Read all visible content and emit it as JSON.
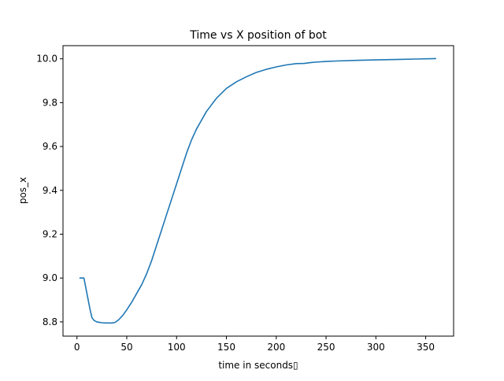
{
  "chart_data": {
    "type": "line",
    "title": "Time vs X position of bot",
    "xlabel": "time in seconds▯",
    "ylabel": "pos_x",
    "xlim": [
      -14,
      378
    ],
    "ylim": [
      8.735,
      10.06
    ],
    "xticks": [
      0,
      50,
      100,
      150,
      200,
      250,
      300,
      350
    ],
    "xtick_labels": [
      "0",
      "50",
      "100",
      "150",
      "200",
      "250",
      "300",
      "350"
    ],
    "yticks": [
      8.8,
      9.0,
      9.2,
      9.4,
      9.6,
      9.8,
      10.0
    ],
    "ytick_labels": [
      "8.8",
      "9.0",
      "9.2",
      "9.4",
      "9.6",
      "9.8",
      "10.0"
    ],
    "grid": false,
    "line_color": "#1f77b4",
    "series": [
      {
        "x": [
          3,
          5,
          7,
          10,
          13,
          15,
          17,
          20,
          25,
          30,
          35,
          38,
          42,
          46,
          50,
          55,
          60,
          65,
          70,
          75,
          80,
          85,
          90,
          95,
          100,
          105,
          110,
          115,
          120,
          130,
          140,
          150,
          160,
          170,
          180,
          190,
          200,
          210,
          220,
          228,
          235,
          240,
          250,
          260,
          280,
          300,
          320,
          340,
          360
        ],
        "y": [
          9.0,
          9.0,
          9.0,
          8.93,
          8.86,
          8.82,
          8.807,
          8.8,
          8.796,
          8.795,
          8.795,
          8.797,
          8.81,
          8.83,
          8.855,
          8.89,
          8.93,
          8.97,
          9.02,
          9.08,
          9.15,
          9.22,
          9.29,
          9.36,
          9.43,
          9.5,
          9.57,
          9.63,
          9.68,
          9.76,
          9.82,
          9.865,
          9.895,
          9.918,
          9.938,
          9.952,
          9.963,
          9.972,
          9.978,
          9.979,
          9.983,
          9.985,
          9.988,
          9.99,
          9.993,
          9.995,
          9.997,
          9.999,
          10.001
        ]
      }
    ]
  }
}
